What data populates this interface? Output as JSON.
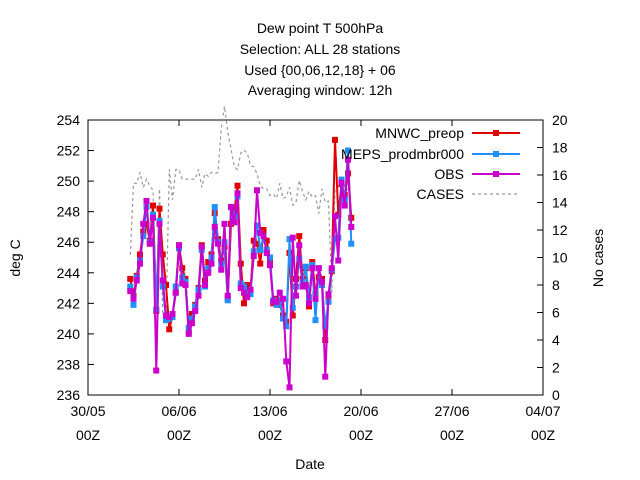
{
  "chart_data": {
    "type": "line",
    "title_lines": [
      "Dew point T 500hPa",
      "Selection: ALL      28 stations",
      "Used {00,06,12,18} + 06",
      "Averaging window: 12h"
    ],
    "xlabel": "Date",
    "ylabel": "deg C",
    "y2label": "No cases",
    "x_ticks": [
      {
        "date": "30/05",
        "hour": "00Z",
        "day": 0
      },
      {
        "date": "06/06",
        "hour": "00Z",
        "day": 7
      },
      {
        "date": "13/06",
        "hour": "00Z",
        "day": 14
      },
      {
        "date": "20/06",
        "hour": "00Z",
        "day": 21
      },
      {
        "date": "27/06",
        "hour": "00Z",
        "day": 28
      },
      {
        "date": "04/07",
        "hour": "00Z",
        "day": 35
      }
    ],
    "xlim_days_from": "30/05 00Z",
    "xlim": [
      0,
      35
    ],
    "ylim": [
      236,
      254
    ],
    "y_ticks": [
      236,
      238,
      240,
      242,
      244,
      246,
      248,
      250,
      252,
      254
    ],
    "y2lim": [
      0,
      20
    ],
    "y2_ticks": [
      0,
      2,
      4,
      6,
      8,
      10,
      12,
      14,
      16,
      18,
      20
    ],
    "grid": false,
    "legend_position": "top-right",
    "x_step_days": 0.25,
    "x_start_day": 3.25,
    "series": [
      {
        "name": "MNWC_preop",
        "color": "#e00000",
        "marker": "square",
        "axis": "left",
        "values": [
          243.6,
          242.5,
          243.8,
          245.2,
          246.7,
          247.2,
          246.1,
          248.4,
          241.5,
          248.2,
          245.2,
          243.2,
          240.3,
          241.2,
          242.7,
          245.8,
          244.3,
          243.6,
          240.1,
          241.3,
          241.9,
          243.0,
          245.8,
          243.5,
          244.7,
          245.2,
          247.9,
          246.2,
          244.8,
          245.7,
          242.3,
          247.2,
          248.0,
          249.7,
          244.6,
          242.0,
          243.2,
          242.8,
          246.1,
          245.9,
          244.6,
          246.8,
          246.1,
          244.8,
          242.0,
          242.3,
          241.9,
          241.2,
          240.8,
          245.3,
          241.2,
          243.6,
          246.4,
          243.6,
          244.3,
          241.8,
          244.7,
          242.6,
          243.7,
          243.6,
          239.6,
          242.5,
          244.1,
          252.7,
          247.8,
          249.8,
          249.1,
          250.5,
          247.6
        ]
      },
      {
        "name": "MEPS_prodmbr000",
        "color": "#1e90ff",
        "marker": "square",
        "axis": "left",
        "values": [
          243.1,
          241.9,
          243.7,
          244.8,
          246.4,
          248.3,
          246.0,
          247.8,
          241.6,
          247.4,
          243.1,
          240.9,
          241.0,
          241.1,
          243.1,
          245.6,
          243.7,
          243.4,
          240.4,
          241.0,
          241.8,
          242.9,
          245.5,
          243.1,
          244.3,
          245.0,
          248.3,
          246.0,
          244.6,
          246.0,
          242.2,
          248.3,
          247.7,
          249.0,
          243.3,
          243.1,
          242.7,
          242.6,
          245.4,
          247.1,
          245.5,
          246.4,
          245.5,
          245.0,
          242.2,
          241.9,
          242.2,
          241.0,
          240.5,
          246.2,
          241.7,
          243.1,
          244.9,
          243.4,
          244.4,
          242.4,
          244.5,
          240.9,
          244.3,
          243.2,
          240.5,
          242.1,
          244.2,
          246.2,
          246.3,
          250.1,
          248.8,
          252.0,
          245.9
        ]
      },
      {
        "name": "OBS",
        "color": "#cc00cc",
        "marker": "square",
        "axis": "left",
        "values": [
          242.8,
          242.3,
          243.5,
          244.6,
          247.2,
          248.7,
          245.9,
          247.6,
          237.6,
          247.2,
          243.5,
          241.2,
          241.1,
          241.3,
          242.7,
          245.8,
          243.3,
          243.2,
          240.0,
          240.7,
          241.5,
          242.5,
          245.7,
          243.2,
          244.0,
          244.6,
          247.0,
          245.9,
          244.2,
          247.2,
          242.5,
          248.3,
          247.3,
          249.2,
          243.0,
          242.7,
          242.4,
          242.9,
          245.1,
          249.4,
          246.6,
          246.4,
          245.3,
          244.5,
          242.1,
          242.1,
          242.7,
          242.3,
          238.2,
          236.5,
          246.3,
          242.5,
          245.8,
          243.1,
          243.2,
          242.0,
          244.3,
          242.3,
          244.3,
          243.4,
          237.2,
          242.6,
          244.3,
          247.7,
          244.8,
          249.9,
          248.4,
          251.4,
          247.0
        ]
      },
      {
        "name": "CASES",
        "color": "#999999",
        "marker": "none",
        "dash": "3,3",
        "axis": "right",
        "values": [
          10.2,
          15.4,
          15.4,
          16.2,
          15.1,
          15.7,
          15.2,
          14.9,
          6.4,
          15.0,
          6.0,
          5.4,
          16.4,
          14.2,
          16.4,
          16.4,
          15.7,
          15.7,
          15.7,
          15.7,
          15.7,
          16.4,
          15.1,
          16.1,
          15.9,
          16.2,
          16.1,
          16.2,
          19.4,
          21.0,
          19.1,
          17.9,
          16.6,
          16.4,
          17.6,
          17.8,
          17.6,
          16.7,
          16.6,
          16.1,
          15.2,
          15.0,
          15.0,
          14.5,
          14.6,
          14.3,
          15.4,
          14.3,
          14.4,
          15.1,
          13.8,
          14.0,
          15.6,
          14.8,
          14.2,
          14.8,
          14.4,
          14.5,
          13.2,
          15.0,
          14.0,
          14.1,
          7.5,
          15.0,
          15.2,
          15.0,
          14.8,
          15.0,
          15.0
        ]
      }
    ]
  }
}
